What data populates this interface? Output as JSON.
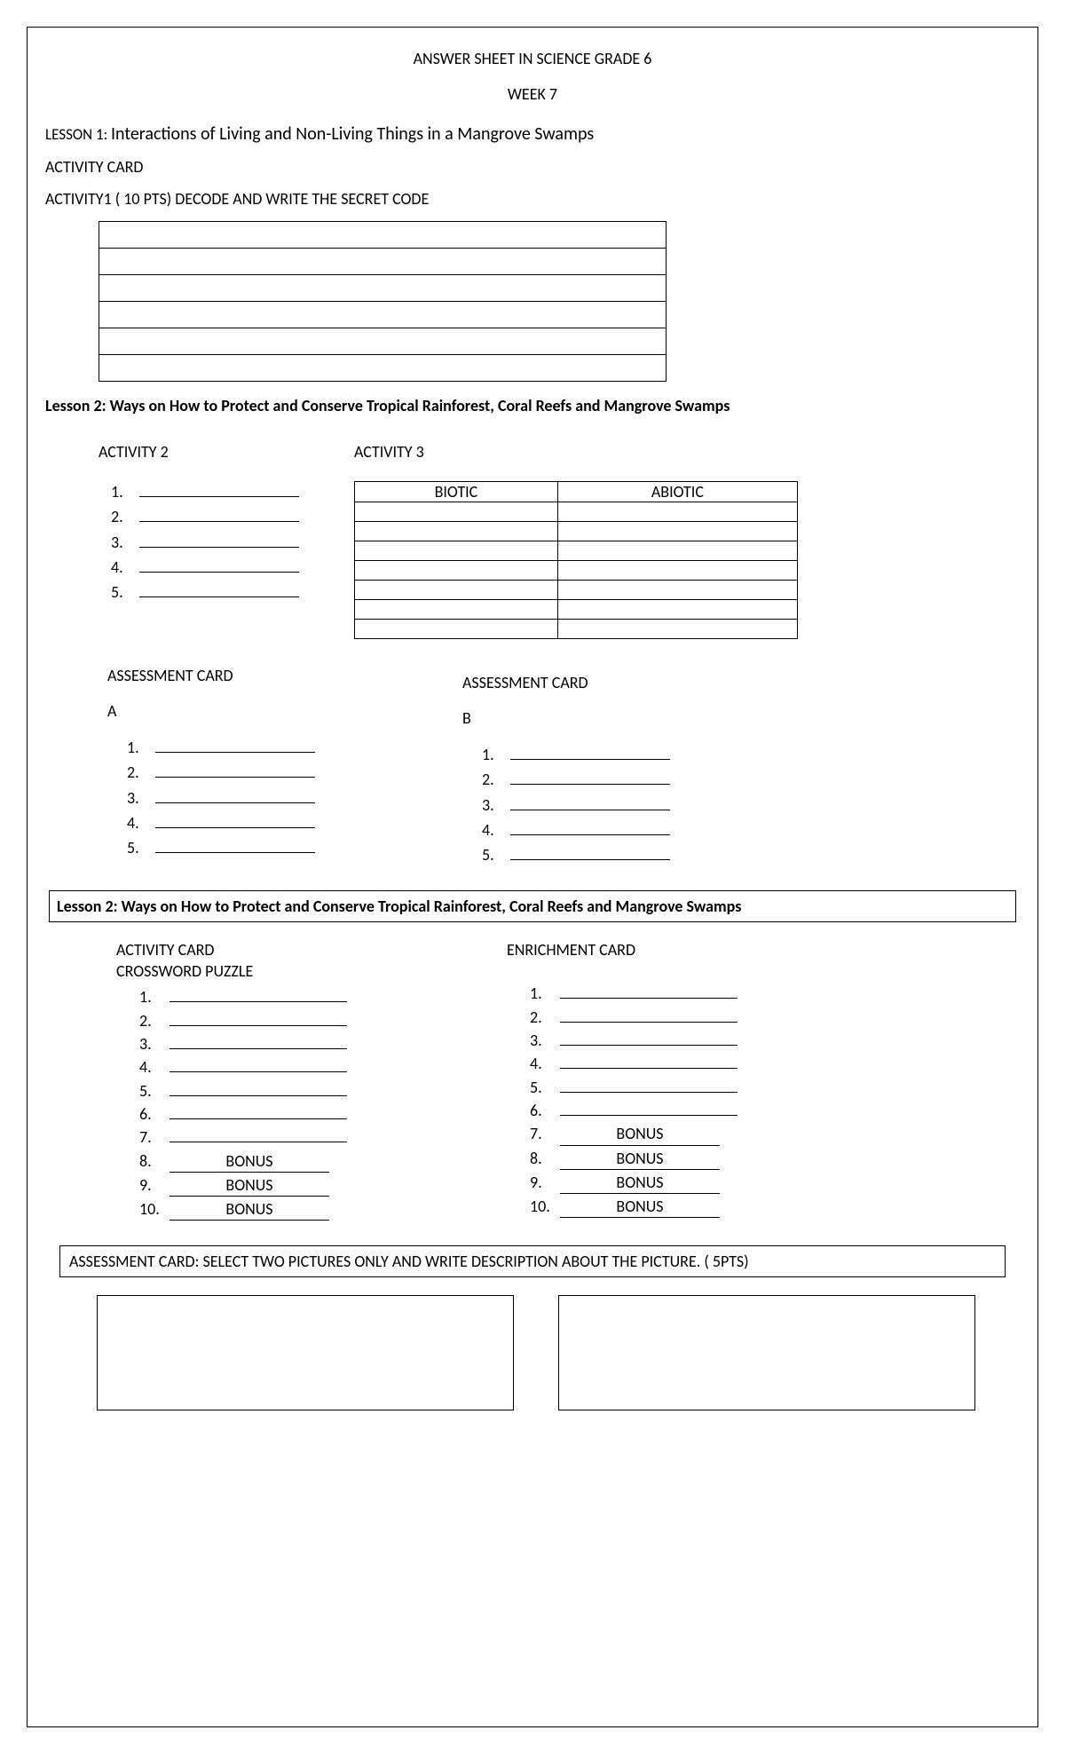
{
  "header": {
    "title": "ANSWER SHEET IN SCIENCE GRADE 6",
    "week": "WEEK 7"
  },
  "lesson1": {
    "prefix": "LESSON 1: ",
    "title": "Interactions of Living and Non-Living Things in a Mangrove Swamps",
    "activity_card": "ACTIVITY CARD",
    "activity1": "ACTIVITY1 ( 10 PTS) DECODE AND WRITE THE SECRET CODE",
    "code_rows": 6
  },
  "lesson2": {
    "prefix": "Lesson 2: ",
    "title": "Ways on How to Protect and Conserve Tropical Rainforest, Coral Reefs and Mangrove Swamps",
    "activity2": {
      "head": "ACTIVITY 2",
      "items": [
        "1.",
        "2.",
        "3.",
        "4.",
        "5."
      ]
    },
    "activity3": {
      "head": "ACTIVITY 3",
      "col1": "BIOTIC",
      "col2": "ABIOTIC",
      "blank_rows": 7
    }
  },
  "assessment": {
    "head": "ASSESSMENT CARD",
    "a": {
      "label": "A",
      "items": [
        "1.",
        "2.",
        "3.",
        "4.",
        "5."
      ]
    },
    "b": {
      "label": "B",
      "items": [
        "1.",
        "2.",
        "3.",
        "4.",
        "5."
      ]
    }
  },
  "lesson2b": {
    "prefix": "Lesson 2: ",
    "title": "Ways on How to Protect and Conserve Tropical Rainforest, Coral Reefs and Mangrove Swamps"
  },
  "activity_card2": {
    "head": "ACTIVITY CARD",
    "sub": "CROSSWORD PUZZLE",
    "items": [
      {
        "n": "1.",
        "bonus": false
      },
      {
        "n": "2.",
        "bonus": false
      },
      {
        "n": "3.",
        "bonus": false
      },
      {
        "n": "4.",
        "bonus": false
      },
      {
        "n": "5.",
        "bonus": false
      },
      {
        "n": "6.",
        "bonus": false
      },
      {
        "n": "7.",
        "bonus": false
      },
      {
        "n": "8.",
        "bonus": true,
        "bonus_text": "BONUS"
      },
      {
        "n": "9.",
        "bonus": true,
        "bonus_text": "BONUS"
      },
      {
        "n": "10.",
        "bonus": true,
        "bonus_text": "BONUS"
      }
    ]
  },
  "enrichment": {
    "head": "ENRICHMENT CARD",
    "items": [
      {
        "n": "1.",
        "bonus": false
      },
      {
        "n": "2.",
        "bonus": false
      },
      {
        "n": "3.",
        "bonus": false
      },
      {
        "n": "4.",
        "bonus": false
      },
      {
        "n": "5.",
        "bonus": false
      },
      {
        "n": "6.",
        "bonus": false
      },
      {
        "n": "7.",
        "bonus": true,
        "bonus_text": "BONUS"
      },
      {
        "n": "8.",
        "bonus": true,
        "bonus_text": "BONUS"
      },
      {
        "n": "9.",
        "bonus": true,
        "bonus_text": "BONUS"
      },
      {
        "n": "10.",
        "bonus": true,
        "bonus_text": "BONUS"
      }
    ]
  },
  "final_assessment": "ASSESSMENT CARD: SELECT TWO PICTURES ONLY AND WRITE DESCRIPTION ABOUT THE PICTURE. ( 5PTS)"
}
